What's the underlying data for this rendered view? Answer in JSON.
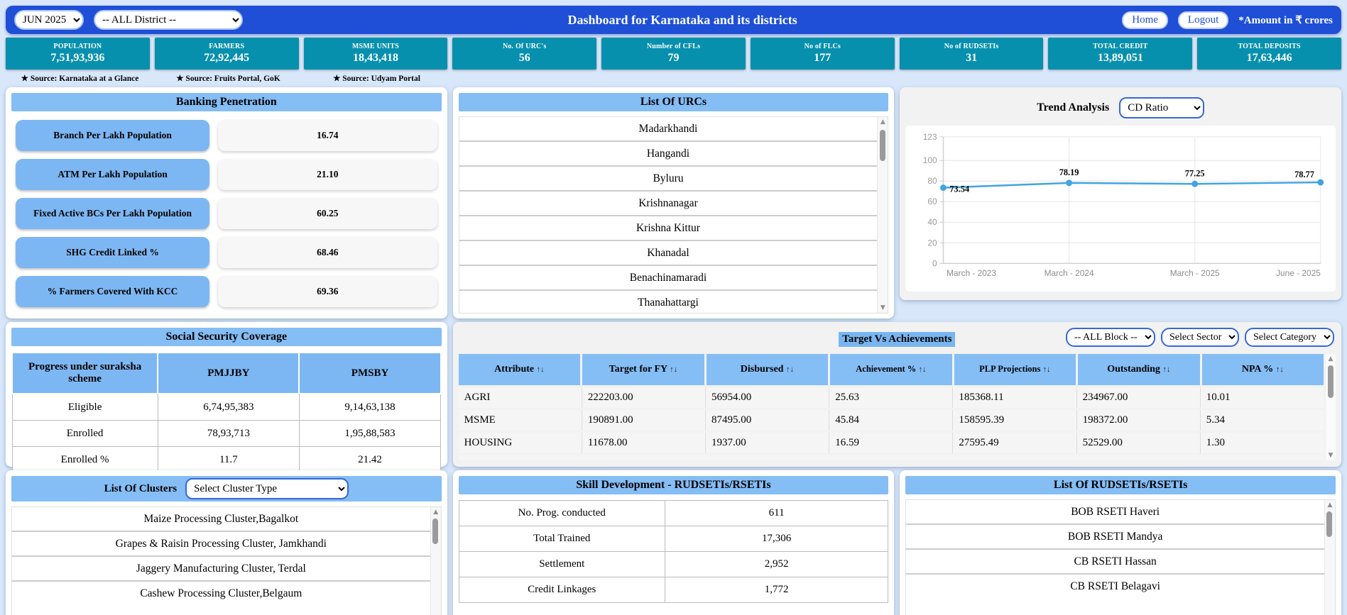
{
  "topbar": {
    "month": "JUN 2025",
    "district": "-- ALL District --",
    "title": "Dashboard for Karnataka and its districts",
    "home_label": "Home",
    "logout_label": "Logout",
    "amount_note": "*Amount in ₹ crores"
  },
  "stats": [
    {
      "label": "POPULATION",
      "value": "7,51,93,936"
    },
    {
      "label": "FARMERS",
      "value": "72,92,445"
    },
    {
      "label": "MSME UNITS",
      "value": "18,43,418"
    },
    {
      "label": "No. Of URC's",
      "value": "56"
    },
    {
      "label": "Number of CFLs",
      "value": "79"
    },
    {
      "label": "No of FLCs",
      "value": "177"
    },
    {
      "label": "No of RUDSETIs",
      "value": "31"
    },
    {
      "label": "TOTAL CREDIT",
      "value": "13,89,051"
    },
    {
      "label": "TOTAL DEPOSITS",
      "value": "17,63,446"
    }
  ],
  "sources": [
    "★ Source: Karnataka at a Glance",
    "★ Source: Fruits Portal, GoK",
    "★ Source: Udyam Portal"
  ],
  "banking": {
    "title": "Banking Penetration",
    "rows": [
      {
        "label": "Branch Per Lakh Population",
        "value": "16.74"
      },
      {
        "label": "ATM Per Lakh Population",
        "value": "21.10"
      },
      {
        "label": "Fixed Active BCs Per Lakh Population",
        "value": "60.25"
      },
      {
        "label": "SHG Credit Linked %",
        "value": "68.46"
      },
      {
        "label": "% Farmers Covered With KCC",
        "value": "69.36"
      }
    ]
  },
  "urcs": {
    "title": "List Of URCs",
    "items": [
      "Madarkhandi",
      "Hangandi",
      "Byluru",
      "Krishnanagar",
      "Krishna Kittur",
      "Khanadal",
      "Benachinamaradi",
      "Thanahattargi"
    ]
  },
  "trend": {
    "title": "Trend Analysis",
    "metric_selector": "CD Ratio",
    "chart_data": {
      "type": "line",
      "x": [
        "March - 2023",
        "March - 2024",
        "March - 2025",
        "June - 2025"
      ],
      "series": [
        {
          "name": "CD Ratio",
          "values": [
            73.54,
            78.19,
            77.25,
            78.77
          ]
        }
      ],
      "point_labels": [
        "73.54",
        "78.19",
        "77.25",
        "78.77"
      ],
      "ylim": [
        0,
        123
      ],
      "yticks": [
        0,
        20,
        40,
        60,
        80,
        100,
        123
      ],
      "grid": true,
      "legend_position": "none",
      "line_color": "#41a3e3"
    }
  },
  "social": {
    "title": "Social Security Coverage",
    "columns": [
      "Progress under suraksha scheme",
      "PMJJBY",
      "PMSBY"
    ],
    "rows": [
      [
        "Eligible",
        "6,74,95,383",
        "9,14,63,138"
      ],
      [
        "Enrolled",
        "78,93,713",
        "1,95,88,583"
      ],
      [
        "Enrolled %",
        "11.7",
        "21.42"
      ]
    ]
  },
  "target": {
    "title": "Target Vs Achievements",
    "block_selector": "-- ALL Block --",
    "sector_selector": "Select Sector",
    "category_selector": "Select Category",
    "sort_icon": "↑↓",
    "columns": [
      "Attribute",
      "Target for FY",
      "Disbursed",
      "Achievement %",
      "PLP Projections",
      "Outstanding",
      "NPA %"
    ],
    "rows": [
      [
        "AGRI",
        "222203.00",
        "56954.00",
        "25.63",
        "185368.11",
        "234967.00",
        "10.01"
      ],
      [
        "MSME",
        "190891.00",
        "87495.00",
        "45.84",
        "158595.39",
        "198372.00",
        "5.34"
      ],
      [
        "HOUSING",
        "11678.00",
        "1937.00",
        "16.59",
        "27595.49",
        "52529.00",
        "1.30"
      ]
    ]
  },
  "clusters": {
    "title": "List Of Clusters",
    "type_selector": "Select Cluster Type",
    "items": [
      "Maize Processing Cluster,Bagalkot",
      "Grapes & Raisin Processing Cluster, Jamkhandi",
      "Jaggery Manufacturing Cluster, Terdal",
      "Cashew Processing Cluster,Belgaum"
    ]
  },
  "skill": {
    "title": "Skill Development - RUDSETIs/RSETIs",
    "rows": [
      [
        "No. Prog. conducted",
        "611"
      ],
      [
        "Total Trained",
        "17,306"
      ],
      [
        "Settlement",
        "2,952"
      ],
      [
        "Credit Linkages",
        "1,772"
      ]
    ]
  },
  "rudsetis": {
    "title": "List Of RUDSETIs/RSETIs",
    "items": [
      "BOB RSETI Haveri",
      "BOB RSETI Mandya",
      "CB RSETI  Hassan",
      "CB RSETI Belagavi"
    ]
  }
}
